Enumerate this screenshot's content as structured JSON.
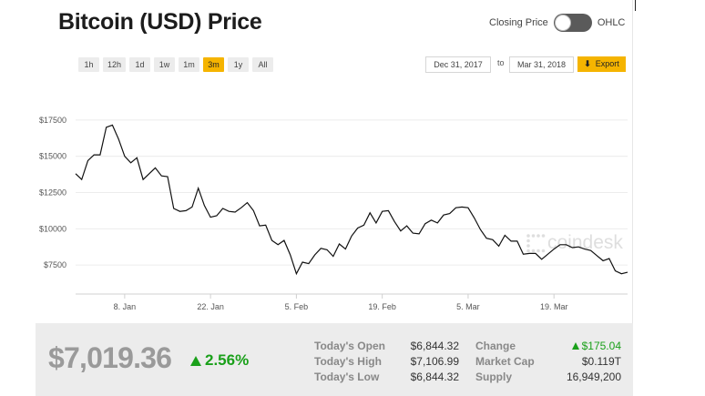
{
  "title": "Bitcoin (USD) Price",
  "toggle": {
    "left_label": "Closing Price",
    "right_label": "OHLC"
  },
  "ranges": [
    "1h",
    "12h",
    "1d",
    "1w",
    "1m",
    "3m",
    "1y",
    "All"
  ],
  "active_range": "3m",
  "date_from": "Dec 31, 2017",
  "date_to_label": "to",
  "date_to": "Mar 31, 2018",
  "export_label": "Export",
  "watermark": "coindesk",
  "colors": {
    "accent": "#f5b400",
    "positive": "#1aa01a",
    "line": "#111111"
  },
  "chart_data": {
    "type": "line",
    "x_ticks": [
      "8. Jan",
      "22. Jan",
      "5. Feb",
      "19. Feb",
      "5. Mar",
      "19. Mar"
    ],
    "y_ticks": [
      "$17500",
      "$15000",
      "$12500",
      "$10000",
      "$7500"
    ],
    "y_tick_values": [
      17500,
      15000,
      12500,
      10000,
      7500
    ],
    "ylim": [
      5500,
      19500
    ],
    "x_start": "2017-12-31",
    "x_end": "2018-03-31",
    "grid": true,
    "series": [
      {
        "values": [
          [
            "2017-12-31",
            13800
          ],
          [
            "2018-01-01",
            13400
          ],
          [
            "2018-01-02",
            14700
          ],
          [
            "2018-01-03",
            15100
          ],
          [
            "2018-01-04",
            15100
          ],
          [
            "2018-01-05",
            17000
          ],
          [
            "2018-01-06",
            17150
          ],
          [
            "2018-01-07",
            16200
          ],
          [
            "2018-01-08",
            15000
          ],
          [
            "2018-01-09",
            14550
          ],
          [
            "2018-01-10",
            14900
          ],
          [
            "2018-01-11",
            13400
          ],
          [
            "2018-01-12",
            13800
          ],
          [
            "2018-01-13",
            14200
          ],
          [
            "2018-01-14",
            13650
          ],
          [
            "2018-01-15",
            13600
          ],
          [
            "2018-01-16",
            11400
          ],
          [
            "2018-01-17",
            11200
          ],
          [
            "2018-01-18",
            11250
          ],
          [
            "2018-01-19",
            11500
          ],
          [
            "2018-01-20",
            12800
          ],
          [
            "2018-01-21",
            11600
          ],
          [
            "2018-01-22",
            10800
          ],
          [
            "2018-01-23",
            10900
          ],
          [
            "2018-01-24",
            11400
          ],
          [
            "2018-01-25",
            11200
          ],
          [
            "2018-01-26",
            11150
          ],
          [
            "2018-01-27",
            11450
          ],
          [
            "2018-01-28",
            11800
          ],
          [
            "2018-01-29",
            11250
          ],
          [
            "2018-01-30",
            10200
          ],
          [
            "2018-01-31",
            10250
          ],
          [
            "2018-02-01",
            9200
          ],
          [
            "2018-02-02",
            8900
          ],
          [
            "2018-02-03",
            9200
          ],
          [
            "2018-02-04",
            8200
          ],
          [
            "2018-02-05",
            6900
          ],
          [
            "2018-02-06",
            7700
          ],
          [
            "2018-02-07",
            7600
          ],
          [
            "2018-02-08",
            8200
          ],
          [
            "2018-02-09",
            8650
          ],
          [
            "2018-02-10",
            8550
          ],
          [
            "2018-02-11",
            8100
          ],
          [
            "2018-02-12",
            8950
          ],
          [
            "2018-02-13",
            8600
          ],
          [
            "2018-02-14",
            9500
          ],
          [
            "2018-02-15",
            10050
          ],
          [
            "2018-02-16",
            10250
          ],
          [
            "2018-02-17",
            11100
          ],
          [
            "2018-02-18",
            10400
          ],
          [
            "2018-02-19",
            11200
          ],
          [
            "2018-02-20",
            11250
          ],
          [
            "2018-02-21",
            10500
          ],
          [
            "2018-02-22",
            9850
          ],
          [
            "2018-02-23",
            10200
          ],
          [
            "2018-02-24",
            9700
          ],
          [
            "2018-02-25",
            9650
          ],
          [
            "2018-02-26",
            10350
          ],
          [
            "2018-02-27",
            10600
          ],
          [
            "2018-02-28",
            10400
          ],
          [
            "2018-03-01",
            10950
          ],
          [
            "2018-03-02",
            11050
          ],
          [
            "2018-03-03",
            11450
          ],
          [
            "2018-03-04",
            11500
          ],
          [
            "2018-03-05",
            11450
          ],
          [
            "2018-03-06",
            10750
          ],
          [
            "2018-03-07",
            9950
          ],
          [
            "2018-03-08",
            9350
          ],
          [
            "2018-03-09",
            9250
          ],
          [
            "2018-03-10",
            8800
          ],
          [
            "2018-03-11",
            9550
          ],
          [
            "2018-03-12",
            9150
          ],
          [
            "2018-03-13",
            9150
          ],
          [
            "2018-03-14",
            8250
          ],
          [
            "2018-03-15",
            8300
          ],
          [
            "2018-03-16",
            8300
          ],
          [
            "2018-03-17",
            7900
          ],
          [
            "2018-03-18",
            8250
          ],
          [
            "2018-03-19",
            8600
          ],
          [
            "2018-03-20",
            8900
          ],
          [
            "2018-03-21",
            8900
          ],
          [
            "2018-03-22",
            8700
          ],
          [
            "2018-03-23",
            8750
          ],
          [
            "2018-03-24",
            8600
          ],
          [
            "2018-03-25",
            8500
          ],
          [
            "2018-03-26",
            8150
          ],
          [
            "2018-03-27",
            7800
          ],
          [
            "2018-03-28",
            7950
          ],
          [
            "2018-03-29",
            7100
          ],
          [
            "2018-03-30",
            6900
          ],
          [
            "2018-03-31",
            7000
          ]
        ]
      }
    ]
  },
  "stats": {
    "price": "$7,019.36",
    "change_pct": "2.56%",
    "rows": [
      {
        "label": "Today's Open",
        "value": "$6,844.32",
        "label2": "Change",
        "value2": "$175.04"
      },
      {
        "label": "Today's High",
        "value": "$7,106.99",
        "label2": "Market Cap",
        "value2": "$0.119T"
      },
      {
        "label": "Today's Low",
        "value": "$6,844.32",
        "label2": "Supply",
        "value2": "16,949,200"
      }
    ]
  }
}
